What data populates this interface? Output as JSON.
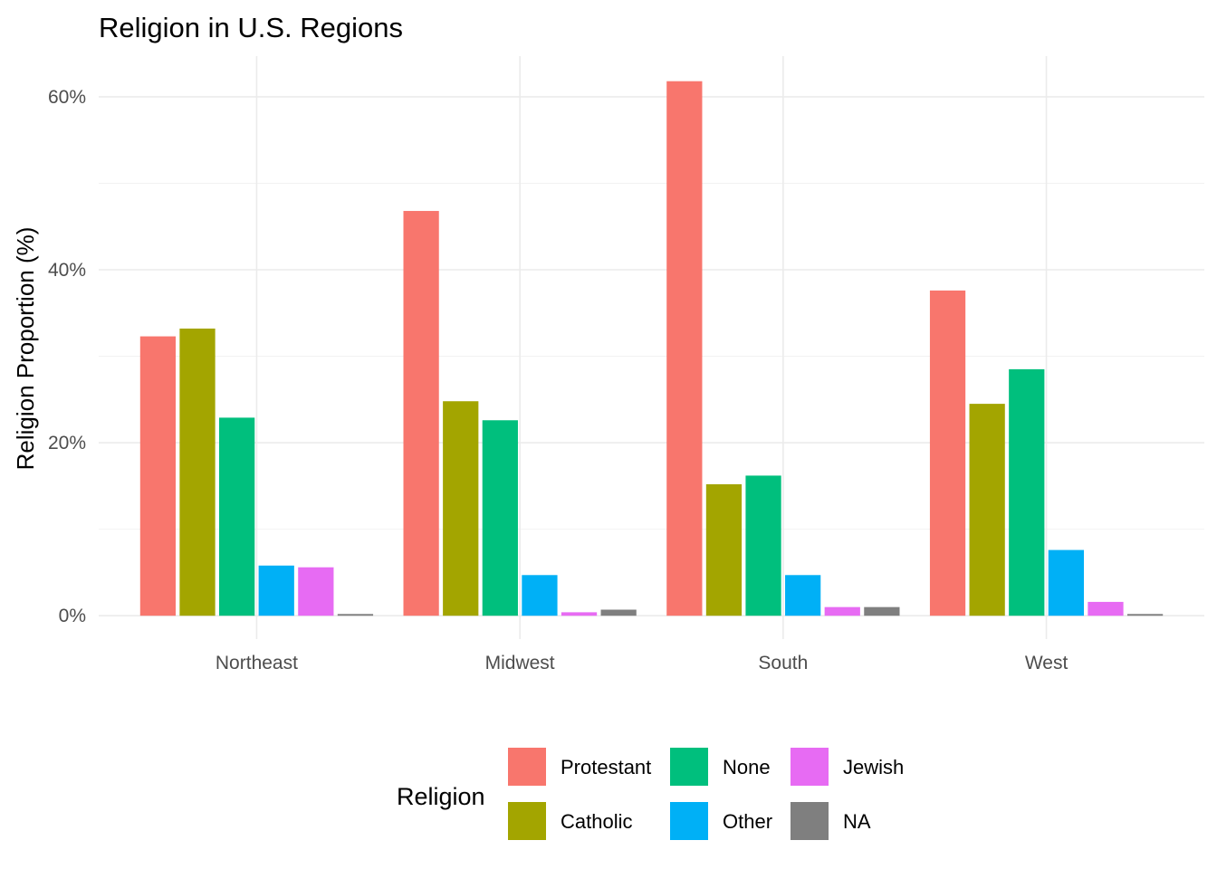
{
  "chart_data": {
    "type": "bar",
    "title": "Religion in U.S. Regions",
    "xlabel": "",
    "ylabel": "Religion Proportion (%)",
    "categories": [
      "Northeast",
      "Midwest",
      "South",
      "West"
    ],
    "series": [
      {
        "name": "Protestant",
        "color": "#F8766D",
        "values": [
          32.3,
          46.8,
          61.8,
          37.6
        ]
      },
      {
        "name": "Catholic",
        "color": "#A3A500",
        "values": [
          33.2,
          24.8,
          15.2,
          24.5
        ]
      },
      {
        "name": "None",
        "color": "#00BF7D",
        "values": [
          22.9,
          22.6,
          16.2,
          28.5
        ]
      },
      {
        "name": "Other",
        "color": "#00B0F6",
        "values": [
          5.8,
          4.7,
          4.7,
          7.6
        ]
      },
      {
        "name": "Jewish",
        "color": "#E76BF3",
        "values": [
          5.6,
          0.4,
          1.0,
          1.6
        ]
      },
      {
        "name": "NA",
        "color": "#7F7F7F",
        "values": [
          0.2,
          0.7,
          1.0,
          0.2
        ]
      }
    ],
    "ylim": [
      -2.7,
      64.7
    ],
    "yticks": [
      0,
      20,
      40,
      60
    ],
    "ytick_labels": [
      "0%",
      "20%",
      "40%",
      "60%"
    ],
    "grid": true,
    "legend": {
      "title": "Religion",
      "position": "bottom"
    }
  }
}
